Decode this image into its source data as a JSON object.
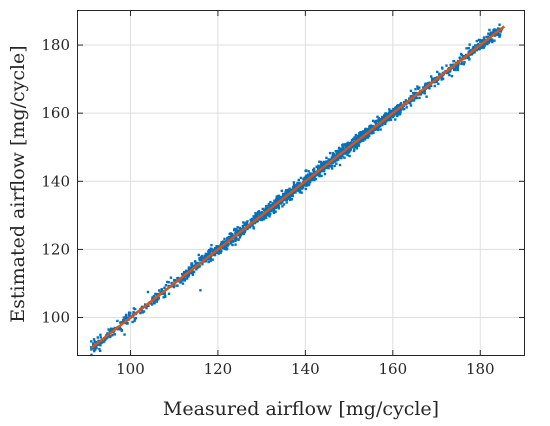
{
  "chart_data": {
    "type": "scatter",
    "title": "",
    "xlabel": "Measured airflow [mg/cycle]",
    "ylabel": "Estimated airflow [mg/cycle]",
    "xlim": [
      88,
      190
    ],
    "ylim": [
      89,
      190
    ],
    "xticks": [
      100,
      120,
      140,
      160,
      180
    ],
    "yticks": [
      100,
      120,
      140,
      160,
      180
    ],
    "grid": true,
    "series": [
      {
        "kind": "scatter",
        "color": "#0072BD",
        "x_range": [
          91,
          185
        ],
        "approx_point_count": 2000,
        "points_sample": [
          [
            91.5,
            92.0
          ],
          [
            95.0,
            96.5
          ],
          [
            97.0,
            99.0
          ],
          [
            100.0,
            100.5
          ],
          [
            104.0,
            107.5
          ],
          [
            106.0,
            106.5
          ],
          [
            109.0,
            109.0
          ],
          [
            113.0,
            113.0
          ],
          [
            116.0,
            108.0
          ],
          [
            117.0,
            117.5
          ],
          [
            121.0,
            121.0
          ],
          [
            124.5,
            126.5
          ],
          [
            128.0,
            128.0
          ],
          [
            132.0,
            132.5
          ],
          [
            136.0,
            136.0
          ],
          [
            139.0,
            141.0
          ],
          [
            142.0,
            143.0
          ],
          [
            145.0,
            145.5
          ],
          [
            147.0,
            147.5
          ],
          [
            150.0,
            149.5
          ],
          [
            152.0,
            152.5
          ],
          [
            155.0,
            156.0
          ],
          [
            158.0,
            158.5
          ],
          [
            161.0,
            160.5
          ],
          [
            165.0,
            165.5
          ],
          [
            170.0,
            170.0
          ],
          [
            175.0,
            175.0
          ],
          [
            180.0,
            181.0
          ],
          [
            184.0,
            183.0
          ]
        ]
      },
      {
        "kind": "line",
        "color": "#D95319",
        "x": [
          91,
          185.5
        ],
        "y": [
          91,
          185.5
        ]
      }
    ]
  }
}
